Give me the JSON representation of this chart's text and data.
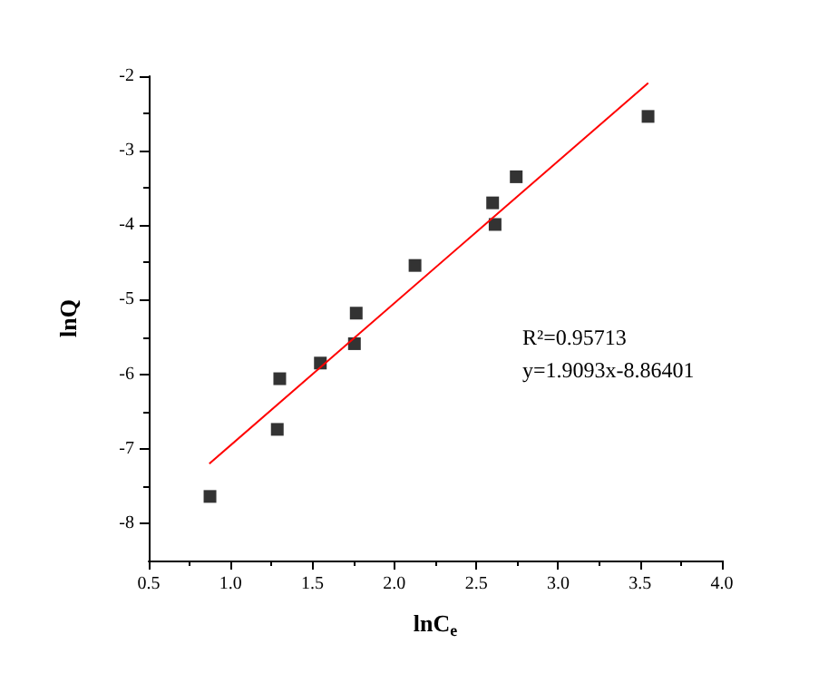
{
  "chart_data": {
    "type": "scatter",
    "xlabel": "lnC$_{e}$",
    "ylabel": "lnQ",
    "marker": "square",
    "grid": false,
    "xlim": [
      0.5,
      4.0
    ],
    "ylim": [
      -8.5,
      -2
    ],
    "xticks": [
      0.5,
      {
        "value": 1,
        "label": "1.0"
      },
      1.5,
      {
        "value": 2,
        "label": "2.0"
      },
      2.5,
      {
        "value": 3,
        "label": "3.0"
      },
      3.5,
      {
        "value": 4,
        "label": "4.0"
      }
    ],
    "yticks": [
      -8,
      -7,
      -6,
      -5,
      -4,
      -3,
      -2
    ],
    "series": [
      {
        "color": "#000000",
        "x": [
          0.874,
          1.285,
          1.3,
          1.548,
          1.756,
          1.767,
          2.126,
          2.6,
          2.615,
          2.744,
          3.549
        ],
        "values": [
          -7.64,
          -6.74,
          -6.06,
          -5.85,
          -5.59,
          -5.18,
          -4.54,
          -3.7,
          -3.99,
          -3.35,
          -2.54
        ]
      },
      {
        "type": "line",
        "color": "#ff0000",
        "marker": "none",
        "x": [
          0.87,
          3.55
        ],
        "values": [
          -7.2,
          -2.09
        ]
      }
    ],
    "annotations": [
      "R²=0.95713",
      "y=1.9093x-8.86401"
    ]
  }
}
